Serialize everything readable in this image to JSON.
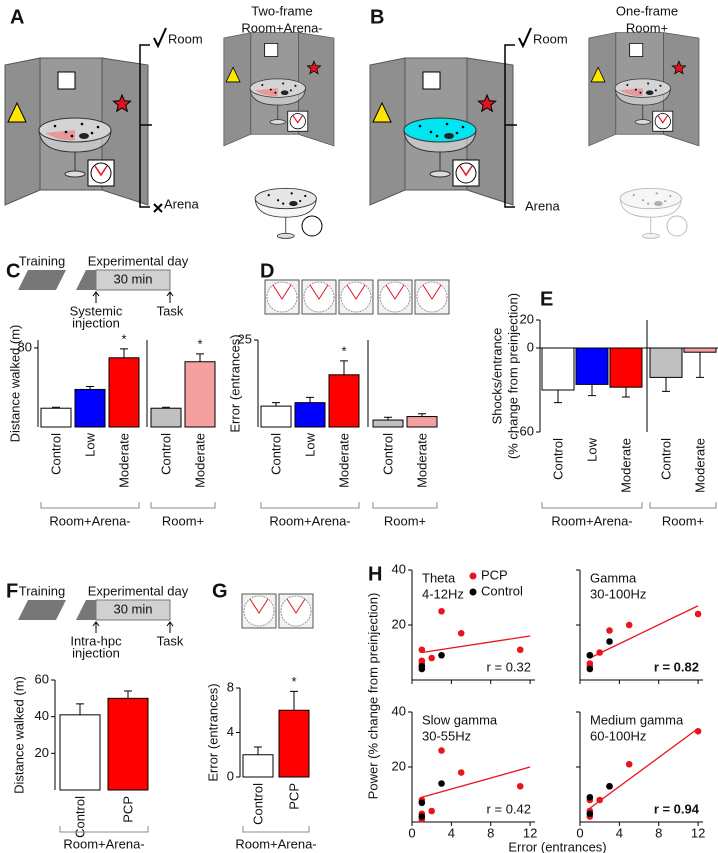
{
  "panel_labels": [
    "A",
    "B",
    "C",
    "D",
    "E",
    "F",
    "G",
    "H"
  ],
  "panel_a": {
    "title": [
      "Two-frame",
      "Room+Arena-"
    ],
    "room": "Room",
    "arena": "Arena"
  },
  "panel_b": {
    "title": [
      "One-frame",
      "Room+"
    ],
    "room": "Room",
    "arena": "Arena"
  },
  "timeline_c": {
    "training": "Training",
    "day": "Experimental day",
    "duration": "30 min",
    "injection": [
      "Systemic",
      "injection"
    ],
    "task": "Task"
  },
  "timeline_f": {
    "training": "Training",
    "day": "Experimental day",
    "duration": "30 min",
    "injection": [
      "Intra-hpc",
      "injection"
    ],
    "task": "Task"
  },
  "chart_data": [
    {
      "type": "bar",
      "ylabel": "Distance walked (m)",
      "ylim": [
        0,
        88
      ],
      "yticks": [
        80
      ],
      "groups": [
        {
          "name": "Room+Arena-",
          "categories": [
            "Control",
            "Low",
            "Moderate"
          ],
          "values": [
            19,
            38,
            70
          ],
          "errors": [
            1,
            3,
            9
          ],
          "colors": [
            "#ffffff",
            "#0000ff",
            "#ff0000"
          ],
          "significance": [
            null,
            null,
            "*"
          ]
        },
        {
          "name": "Room+",
          "categories": [
            "Control",
            "Moderate"
          ],
          "values": [
            19,
            66
          ],
          "errors": [
            1,
            8
          ],
          "colors": [
            "#c0c0c0",
            "#f4a0a0"
          ],
          "significance": [
            null,
            "*"
          ]
        }
      ]
    },
    {
      "type": "bar",
      "ylabel": "Error (entrances)",
      "ylim": [
        0,
        25
      ],
      "yticks": [
        25
      ],
      "groups": [
        {
          "name": "Room+Arena-",
          "categories": [
            "Control",
            "Low",
            "Moderate"
          ],
          "values": [
            6,
            7,
            15
          ],
          "errors": [
            1,
            1.5,
            4
          ],
          "colors": [
            "#ffffff",
            "#0000ff",
            "#ff0000"
          ],
          "significance": [
            null,
            null,
            "*"
          ]
        },
        {
          "name": "Room+",
          "categories": [
            "Control",
            "Moderate"
          ],
          "values": [
            2,
            3
          ],
          "errors": [
            0.8,
            0.8
          ],
          "colors": [
            "#c0c0c0",
            "#f4a0a0"
          ]
        }
      ]
    },
    {
      "type": "bar",
      "ylabel": [
        "Shocks/entrance",
        "(% change from preinjection)"
      ],
      "ylim": [
        -60,
        20
      ],
      "yticks": [
        20,
        0,
        -60
      ],
      "groups": [
        {
          "name": "Room+Arena-",
          "categories": [
            "Control",
            "Low",
            "Moderate"
          ],
          "values": [
            -30,
            -26,
            -28
          ],
          "errors": [
            9,
            8,
            7
          ],
          "colors": [
            "#ffffff",
            "#0000ff",
            "#ff0000"
          ]
        },
        {
          "name": "Room+",
          "categories": [
            "Control",
            "Moderate"
          ],
          "values": [
            -21,
            -3
          ],
          "errors": [
            10,
            18
          ],
          "colors": [
            "#c0c0c0",
            "#f4a0a0"
          ]
        }
      ]
    },
    {
      "type": "bar",
      "ylabel": "Distance walked (m)",
      "ylim": [
        0,
        60
      ],
      "yticks": [
        20,
        40,
        60
      ],
      "groups": [
        {
          "name": "Room+Arena-",
          "categories": [
            "Control",
            "PCP"
          ],
          "values": [
            41,
            50
          ],
          "errors": [
            6,
            4
          ],
          "colors": [
            "#ffffff",
            "#ff0000"
          ]
        }
      ]
    },
    {
      "type": "bar",
      "ylabel": "Error (entrances)",
      "ylim": [
        0,
        8
      ],
      "yticks": [
        0,
        4,
        8
      ],
      "groups": [
        {
          "name": "Room+Arena-",
          "categories": [
            "Control",
            "PCP"
          ],
          "values": [
            2,
            6
          ],
          "errors": [
            0.7,
            1.7
          ],
          "colors": [
            "#ffffff",
            "#ff0000"
          ],
          "significance": [
            null,
            "*"
          ]
        }
      ]
    },
    {
      "type": "scatter",
      "ylabel": "Power (% change from preinjection)",
      "xlabel": "Error (entrances)",
      "xlim": [
        0,
        12.5
      ],
      "xticks": [
        0,
        4,
        8,
        12
      ],
      "ylim": [
        0,
        40
      ],
      "yticks": [
        20,
        40
      ],
      "legend": "top-right",
      "fit_color": "#e8141e",
      "series": [
        {
          "name": "PCP",
          "color": "#e8141e"
        },
        {
          "name": "Control",
          "color": "#000000"
        }
      ],
      "panels": [
        {
          "title": [
            "Theta",
            "4-12Hz"
          ],
          "annotation": "r = 0.32",
          "annotation_bold": false,
          "points": [
            {
              "x": [
                1,
                1,
                2,
                3,
                5,
                11,
                1
              ],
              "y": [
                11,
                7,
                8,
                25,
                17,
                11,
                6
              ]
            },
            {
              "x": [
                1,
                1,
                3
              ],
              "y": [
                5,
                4,
                9
              ]
            }
          ],
          "fit_x": [
            1,
            12
          ],
          "fit_y": [
            10,
            16
          ]
        },
        {
          "title": [
            "Gamma",
            "30-100Hz"
          ],
          "annotation": "r = 0.82",
          "annotation_bold": true,
          "points": [
            {
              "x": [
                1,
                1,
                2,
                3,
                5,
                12,
                1
              ],
              "y": [
                6,
                9,
                10,
                18,
                20,
                24,
                5
              ]
            },
            {
              "x": [
                1,
                1,
                3
              ],
              "y": [
                4,
                9,
                14
              ]
            }
          ],
          "fit_x": [
            1,
            12
          ],
          "fit_y": [
            8,
            27
          ]
        },
        {
          "title": [
            "Slow gamma",
            "30-55Hz"
          ],
          "annotation": "r = 0.42",
          "annotation_bold": false,
          "points": [
            {
              "x": [
                1,
                1,
                2,
                3,
                5,
                11,
                1
              ],
              "y": [
                8,
                3,
                4,
                26,
                18,
                13,
                1
              ]
            },
            {
              "x": [
                1,
                1,
                3
              ],
              "y": [
                2,
                7,
                14
              ]
            }
          ],
          "fit_x": [
            1,
            12
          ],
          "fit_y": [
            9,
            20
          ]
        },
        {
          "title": [
            "Medium gamma",
            "60-100Hz"
          ],
          "annotation": "r = 0.94",
          "annotation_bold": true,
          "points": [
            {
              "x": [
                1,
                1,
                2,
                3,
                5,
                12,
                1
              ],
              "y": [
                4,
                8,
                8,
                13,
                21,
                33,
                2
              ]
            },
            {
              "x": [
                1,
                1,
                3
              ],
              "y": [
                3,
                9,
                13
              ]
            }
          ],
          "fit_x": [
            1,
            12
          ],
          "fit_y": [
            5,
            34
          ]
        }
      ]
    }
  ]
}
